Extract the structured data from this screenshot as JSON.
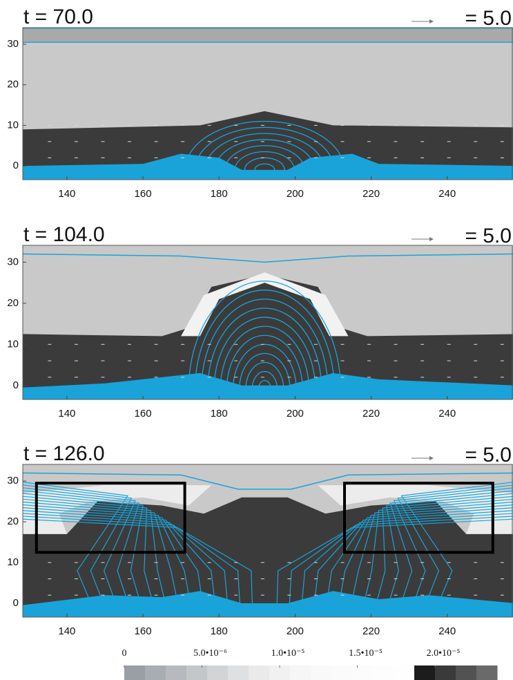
{
  "chart_data": [
    {
      "type": "image",
      "title": "t = 70.0",
      "annotation": "= 5.0",
      "xlim": [
        128.4,
        257.3
      ],
      "ylim": [
        -3.4,
        34.1
      ],
      "xticks": [
        140,
        160,
        180,
        200,
        220,
        240
      ],
      "yticks": [
        0,
        10,
        20,
        30
      ]
    },
    {
      "type": "image",
      "title": "t = 104.0",
      "annotation": "= 5.0",
      "xlim": [
        128.4,
        257.3
      ],
      "ylim": [
        -3.4,
        34.1
      ],
      "xticks": [
        140,
        160,
        180,
        200,
        220,
        240
      ],
      "yticks": [
        0,
        10,
        20,
        30
      ]
    },
    {
      "type": "image",
      "title": "t = 126.0",
      "annotation": "= 5.0",
      "xlim": [
        128.4,
        257.3
      ],
      "ylim": [
        -3.4,
        34.1
      ],
      "xticks": [
        140,
        160,
        180,
        200,
        220,
        240
      ],
      "yticks": [
        0,
        10,
        20,
        30
      ]
    }
  ],
  "colorbar": {
    "clim": [
      0,
      2.4e-05
    ],
    "ticks": [
      0,
      {
        "value": 5e-06,
        "label": "5.0•10⁻⁶"
      },
      {
        "value": 1e-05,
        "label": "1.0•10⁻⁵"
      },
      {
        "value": 1.5e-05,
        "label": "1.5•10⁻⁵"
      },
      {
        "value": 2e-05,
        "label": "2.0•10⁻⁵"
      }
    ]
  }
}
